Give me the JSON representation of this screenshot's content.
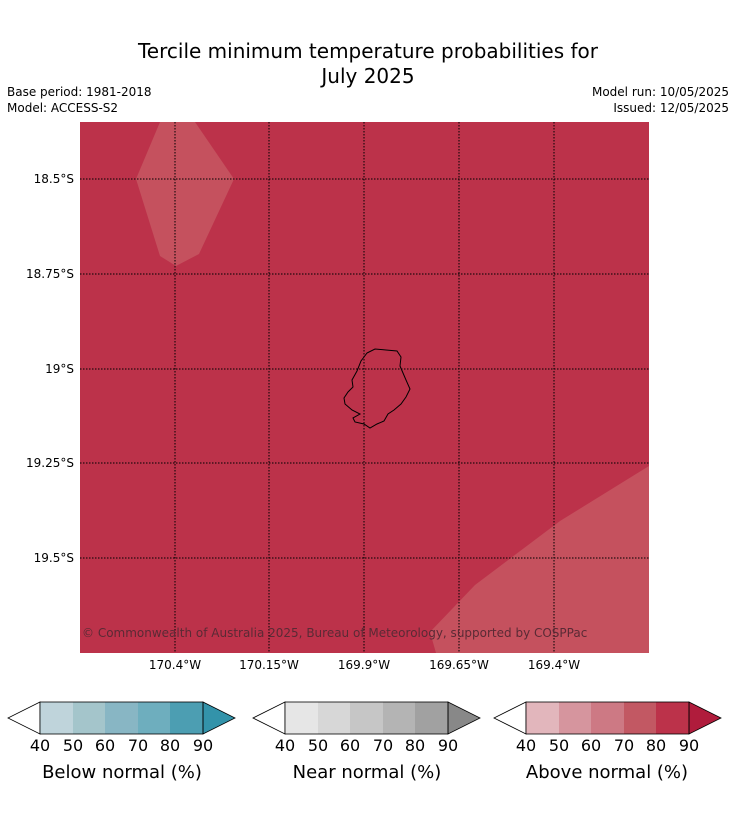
{
  "title_line1": "Tercile minimum temperature probabilities for",
  "title_line2": "July 2025",
  "meta_left": {
    "base_period": "Base period: 1981-2018",
    "model": "Model: ACCESS-S2"
  },
  "meta_right": {
    "model_run": "Model run: 10/05/2025",
    "issued": "Issued: 12/05/2025"
  },
  "lat_labels": [
    "18.5°S",
    "18.75°S",
    "19°S",
    "19.25°S",
    "19.5°S"
  ],
  "lon_labels": [
    "170.4°W",
    "170.15°W",
    "169.9°W",
    "169.65°W",
    "169.4°W"
  ],
  "copyright": "© Commonwealth of Australia 2025, Bureau of Meteorology, supported by COSPPac",
  "colors": {
    "above_80_90": "#bc324a",
    "above_70_80": "#c5515e",
    "island_outline": "#000000"
  },
  "colorbars": [
    {
      "title": "Below normal (%)",
      "ticks": [
        "40",
        "50",
        "60",
        "70",
        "80",
        "90"
      ],
      "colors": [
        "#bfd4db",
        "#a4c5cb",
        "#88b6c4",
        "#6eaebe",
        "#4c9eb2",
        "#3393aa"
      ]
    },
    {
      "title": "Near normal (%)",
      "ticks": [
        "40",
        "50",
        "60",
        "70",
        "80",
        "90"
      ],
      "colors": [
        "#e6e6e6",
        "#d7d7d7",
        "#c6c6c6",
        "#b4b4b4",
        "#a1a1a1",
        "#888888"
      ]
    },
    {
      "title": "Above normal (%)",
      "ticks": [
        "40",
        "50",
        "60",
        "70",
        "80",
        "90"
      ],
      "colors": [
        "#e2b6bc",
        "#d6959e",
        "#cd7984",
        "#c25863",
        "#bc324a",
        "#b01c3c"
      ]
    }
  ]
}
